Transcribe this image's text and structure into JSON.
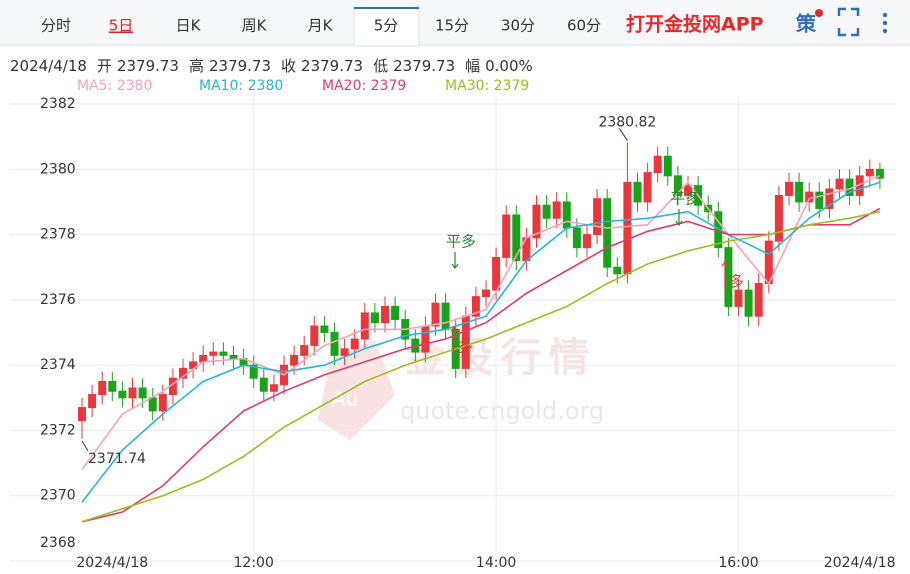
{
  "tabs": [
    "分时",
    "5日",
    "日K",
    "周K",
    "月K",
    "5分",
    "15分",
    "30分",
    "60分"
  ],
  "promo": "打开金投网APP",
  "icon": "策",
  "info": {
    "date": "2024/4/18",
    "items": [
      {
        "label": "开",
        "value": "2379.73"
      },
      {
        "label": "高",
        "value": "2379.73"
      },
      {
        "label": "收",
        "value": "2379.73"
      },
      {
        "label": "低",
        "value": "2379.73"
      },
      {
        "label": "幅",
        "value": "0.00%"
      }
    ]
  },
  "watermark": {
    "logo": "Au",
    "title": "金投行情",
    "url": "quote.cngold.org"
  },
  "annotations": [
    "平多",
    "多",
    "平多",
    "多"
  ],
  "chart_data": {
    "type": "candlestick",
    "up_color": "#e8383d",
    "down_color": "#1aa31a",
    "open": [
      2372.3,
      2372.7,
      2373.1,
      2373.5,
      2373.2,
      2373.0,
      2373.3,
      2373.0,
      2372.6,
      2373.1,
      2373.6,
      2373.9,
      2374.1,
      2374.3,
      2374.4,
      2374.3,
      2374.2,
      2374.0,
      2373.6,
      2373.2,
      2373.4,
      2374.0,
      2374.3,
      2374.6,
      2375.2,
      2375.0,
      2374.3,
      2374.5,
      2374.8,
      2375.6,
      2375.3,
      2375.8,
      2375.4,
      2374.8,
      2374.4,
      2375.2,
      2375.9,
      2375.1,
      2373.9,
      2375.5,
      2376.1,
      2376.3,
      2377.3,
      2378.6,
      2377.2,
      2377.9,
      2378.9,
      2378.5,
      2379.0,
      2378.2,
      2377.6,
      2378.0,
      2379.1,
      2377.0,
      2376.8,
      2379.6,
      2379.0,
      2379.9,
      2380.4,
      2379.8,
      2379.2,
      2379.5,
      2378.9,
      2378.7,
      2377.6,
      2375.8,
      2376.3,
      2375.5,
      2376.5,
      2377.8,
      2379.2,
      2379.6,
      2379.0,
      2379.3,
      2378.8,
      2379.4,
      2379.7,
      2379.2,
      2379.8,
      2380.0
    ],
    "high": [
      2373.0,
      2373.4,
      2373.8,
      2373.8,
      2373.5,
      2373.6,
      2373.6,
      2373.3,
      2373.4,
      2373.9,
      2374.2,
      2374.4,
      2374.6,
      2374.7,
      2374.7,
      2374.6,
      2374.5,
      2374.3,
      2373.9,
      2373.7,
      2374.3,
      2374.6,
      2374.9,
      2375.5,
      2375.5,
      2375.3,
      2374.8,
      2375.1,
      2375.9,
      2375.9,
      2376.1,
      2376.1,
      2375.7,
      2375.1,
      2375.5,
      2376.2,
      2376.2,
      2375.4,
      2375.8,
      2376.4,
      2376.6,
      2377.6,
      2378.9,
      2378.9,
      2378.2,
      2379.2,
      2379.2,
      2379.3,
      2379.3,
      2378.5,
      2378.3,
      2379.4,
      2379.4,
      2377.3,
      2380.82,
      2379.9,
      2380.2,
      2380.7,
      2380.7,
      2380.1,
      2379.8,
      2379.8,
      2379.2,
      2379.0,
      2377.9,
      2376.6,
      2376.6,
      2376.8,
      2378.1,
      2379.5,
      2379.9,
      2379.9,
      2379.6,
      2379.6,
      2379.7,
      2380.0,
      2380.0,
      2380.1,
      2380.3,
      2380.2
    ],
    "low": [
      2371.74,
      2372.4,
      2372.8,
      2372.9,
      2372.7,
      2372.7,
      2372.7,
      2372.3,
      2372.3,
      2372.8,
      2373.3,
      2373.6,
      2373.8,
      2374.0,
      2374.0,
      2373.9,
      2373.7,
      2373.3,
      2372.9,
      2372.9,
      2373.1,
      2373.7,
      2374.0,
      2374.3,
      2374.7,
      2374.0,
      2374.0,
      2374.2,
      2374.5,
      2375.0,
      2375.0,
      2375.1,
      2374.5,
      2374.1,
      2374.1,
      2374.9,
      2374.8,
      2373.6,
      2373.6,
      2375.2,
      2375.8,
      2376.0,
      2377.0,
      2376.9,
      2376.9,
      2377.6,
      2378.2,
      2378.2,
      2377.9,
      2377.3,
      2377.3,
      2377.7,
      2376.7,
      2376.5,
      2376.5,
      2378.7,
      2378.7,
      2379.6,
      2379.5,
      2378.9,
      2378.9,
      2378.6,
      2378.4,
      2377.3,
      2375.5,
      2375.5,
      2375.2,
      2375.2,
      2376.2,
      2377.5,
      2378.9,
      2378.7,
      2378.7,
      2378.5,
      2378.5,
      2379.1,
      2378.9,
      2378.9,
      2379.5,
      2379.4
    ],
    "close": [
      2372.7,
      2373.1,
      2373.5,
      2373.2,
      2373.0,
      2373.3,
      2373.0,
      2372.6,
      2373.1,
      2373.6,
      2373.9,
      2374.1,
      2374.3,
      2374.4,
      2374.3,
      2374.2,
      2374.0,
      2373.6,
      2373.2,
      2373.4,
      2374.0,
      2374.3,
      2374.6,
      2375.2,
      2375.0,
      2374.3,
      2374.5,
      2374.8,
      2375.6,
      2375.3,
      2375.8,
      2375.4,
      2374.8,
      2374.4,
      2375.2,
      2375.9,
      2375.1,
      2373.9,
      2375.5,
      2376.1,
      2376.3,
      2377.3,
      2378.6,
      2377.2,
      2377.9,
      2378.9,
      2378.5,
      2379.0,
      2378.2,
      2377.6,
      2378.0,
      2379.1,
      2377.0,
      2376.8,
      2379.6,
      2379.0,
      2379.9,
      2380.4,
      2379.8,
      2379.2,
      2379.5,
      2378.9,
      2378.7,
      2377.6,
      2375.8,
      2376.3,
      2375.5,
      2376.5,
      2377.8,
      2379.2,
      2379.6,
      2379.0,
      2379.3,
      2378.8,
      2379.4,
      2379.7,
      2379.2,
      2379.8,
      2380.0,
      2379.73
    ],
    "series": [
      {
        "name": "MA5: 2380",
        "color": "#f4a3b8",
        "x": [
          0,
          4,
          8,
          12,
          16,
          20,
          24,
          28,
          32,
          36,
          40,
          44,
          48,
          52,
          56,
          60,
          64,
          68,
          72,
          76,
          79
        ],
        "values": [
          2370.8,
          2372.5,
          2373.2,
          2374.1,
          2374.2,
          2373.7,
          2374.6,
          2375.1,
          2375.1,
          2375.3,
          2375.7,
          2377.9,
          2378.4,
          2378.2,
          2378.3,
          2379.6,
          2378.0,
          2376.5,
          2379.1,
          2379.4,
          2379.8
        ]
      },
      {
        "name": "MA10: 2380",
        "color": "#2ab4d6",
        "x": [
          0,
          4,
          8,
          12,
          16,
          20,
          24,
          28,
          32,
          36,
          40,
          44,
          48,
          52,
          56,
          60,
          64,
          68,
          72,
          76,
          79
        ],
        "values": [
          2369.8,
          2371.4,
          2372.5,
          2373.5,
          2374.0,
          2373.8,
          2374.0,
          2374.5,
          2374.9,
          2375.1,
          2375.5,
          2377.2,
          2378.2,
          2378.4,
          2378.5,
          2378.7,
          2378.0,
          2377.4,
          2378.5,
          2379.3,
          2379.6
        ]
      },
      {
        "name": "MA20: 2379",
        "color": "#dc3b72",
        "x": [
          0,
          4,
          8,
          12,
          16,
          20,
          24,
          28,
          32,
          36,
          40,
          44,
          48,
          52,
          56,
          60,
          64,
          68,
          72,
          76,
          79
        ],
        "values": [
          2369.2,
          2369.5,
          2370.3,
          2371.5,
          2372.6,
          2373.2,
          2373.7,
          2374.1,
          2374.5,
          2374.8,
          2375.3,
          2376.2,
          2376.9,
          2377.6,
          2378.1,
          2378.4,
          2378.0,
          2378.0,
          2378.3,
          2378.3,
          2378.8
        ]
      },
      {
        "name": "MA30: 2379",
        "color": "#9fbc22",
        "x": [
          0,
          4,
          8,
          12,
          16,
          20,
          24,
          28,
          32,
          36,
          40,
          44,
          48,
          52,
          56,
          60,
          64,
          68,
          72,
          76,
          79
        ],
        "values": [
          2369.2,
          2369.6,
          2370.0,
          2370.5,
          2371.2,
          2372.1,
          2372.8,
          2373.5,
          2374.0,
          2374.4,
          2374.8,
          2375.3,
          2375.8,
          2376.5,
          2377.1,
          2377.5,
          2377.8,
          2378.0,
          2378.3,
          2378.5,
          2378.7
        ]
      }
    ],
    "ylim": [
      2368,
      2382.2
    ],
    "yticks": [
      2368,
      2370,
      2372,
      2374,
      2376,
      2378,
      2380,
      2382
    ],
    "xlim": [
      -0.5,
      80.5
    ],
    "xticks": [
      {
        "value": 3,
        "label": "2024/4/18"
      },
      {
        "value": 17,
        "label": "12:00"
      },
      {
        "value": 41,
        "label": "14:00"
      },
      {
        "value": 65,
        "label": "16:00"
      },
      {
        "value": 77,
        "label": "2024/4/18"
      }
    ],
    "grid": true,
    "max_index": 54,
    "min_index": 0
  }
}
